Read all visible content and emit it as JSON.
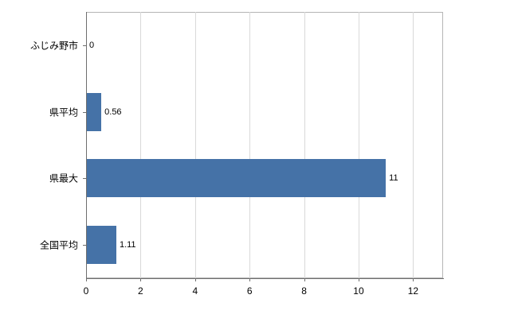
{
  "chart_data": {
    "type": "bar",
    "orientation": "horizontal",
    "title": "",
    "categories": [
      "ふじみ野市",
      "県平均",
      "県最大",
      "全国平均"
    ],
    "values": [
      0,
      0.56,
      11,
      1.11
    ],
    "value_labels": [
      "0",
      "0.56",
      "11",
      "1.11"
    ],
    "x_ticks": [
      0,
      2,
      4,
      6,
      8,
      10,
      12
    ],
    "x_tick_labels": [
      "0",
      "2",
      "4",
      "6",
      "8",
      "10",
      "12"
    ],
    "xlim": [
      0,
      13.1
    ],
    "grid": true,
    "legend": "none",
    "bar_color": "#4572a7",
    "grid_color": "#d9d9d9",
    "axis_color": "#6e6e6e",
    "plot_border_color": "#b5b5b5",
    "background_color": "#ffffff"
  }
}
